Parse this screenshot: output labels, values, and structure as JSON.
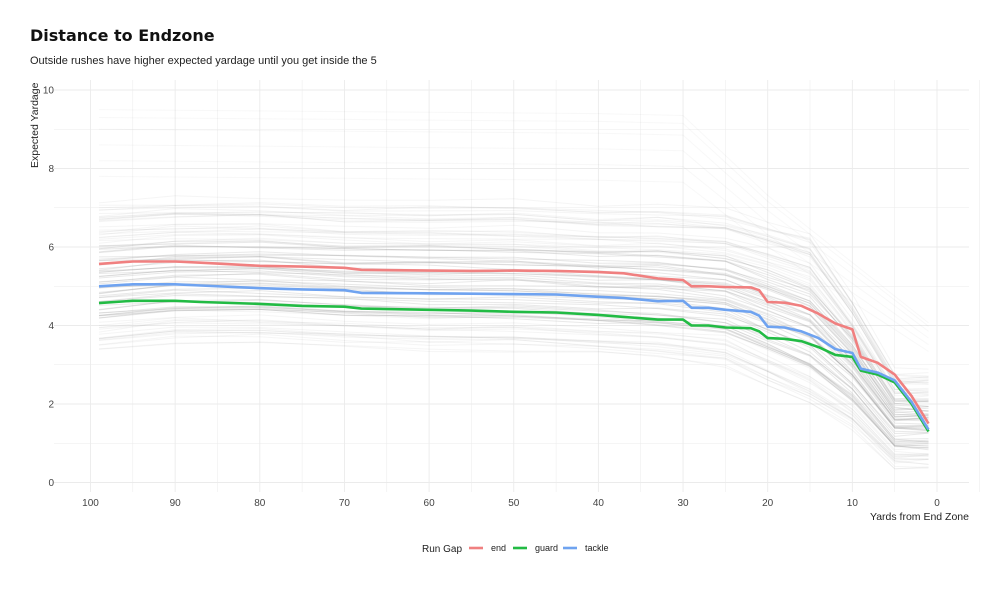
{
  "chart_data": {
    "type": "line",
    "title": "Distance to Endzone",
    "subtitle": "Outside rushes have higher expected yardage until you get inside the 5",
    "xlabel": "Yards from End Zone",
    "ylabel": "Expected Yardage",
    "xlim": [
      104,
      -4
    ],
    "ylim": [
      0,
      10
    ],
    "x_reversed": true,
    "x_ticks": [
      100,
      90,
      80,
      70,
      60,
      50,
      40,
      30,
      20,
      10,
      0
    ],
    "y_ticks": [
      0,
      2,
      4,
      6,
      8,
      10
    ],
    "grid": true,
    "background_lines": {
      "description_color": "#bdbdbd",
      "band_top": [
        7.1,
        7.2,
        7.2,
        7.1,
        7.1,
        7.1,
        7.0,
        7.0,
        6.9,
        6.6,
        6.3,
        4.7,
        2.8
      ],
      "band_bottom": [
        3.4,
        3.6,
        3.6,
        3.5,
        3.4,
        3.4,
        3.3,
        3.2,
        3.0,
        2.5,
        2.0,
        1.4,
        0.4
      ]
    },
    "legend": {
      "title": "Run Gap",
      "position": "bottom"
    },
    "series": [
      {
        "name": "end",
        "color": "#f08080",
        "x": [
          99,
          95,
          90,
          87,
          80,
          75,
          70,
          68,
          60,
          55,
          50,
          45,
          40,
          37,
          33,
          30,
          29,
          27,
          25,
          22,
          21,
          20,
          18,
          16,
          14,
          12,
          10,
          9,
          7,
          5,
          3,
          1
        ],
        "y": [
          5.57,
          5.63,
          5.63,
          5.6,
          5.52,
          5.5,
          5.47,
          5.42,
          5.4,
          5.39,
          5.4,
          5.39,
          5.36,
          5.33,
          5.2,
          5.16,
          5.0,
          5.0,
          4.98,
          4.97,
          4.9,
          4.6,
          4.58,
          4.5,
          4.3,
          4.05,
          3.9,
          3.2,
          3.05,
          2.75,
          2.2,
          1.5
        ]
      },
      {
        "name": "guard",
        "color": "#22bb44",
        "x": [
          99,
          95,
          90,
          87,
          80,
          75,
          70,
          68,
          60,
          55,
          50,
          45,
          40,
          37,
          33,
          30,
          29,
          27,
          25,
          22,
          21,
          20,
          18,
          16,
          14,
          12,
          10,
          9,
          7,
          5,
          3,
          1
        ],
        "y": [
          4.57,
          4.63,
          4.63,
          4.6,
          4.55,
          4.5,
          4.48,
          4.43,
          4.4,
          4.38,
          4.35,
          4.33,
          4.27,
          4.22,
          4.15,
          4.15,
          4.0,
          4.0,
          3.95,
          3.93,
          3.85,
          3.68,
          3.66,
          3.6,
          3.45,
          3.25,
          3.2,
          2.85,
          2.75,
          2.55,
          2.0,
          1.3
        ]
      },
      {
        "name": "tackle",
        "color": "#6fa3f0",
        "x": [
          99,
          95,
          90,
          87,
          80,
          75,
          70,
          68,
          60,
          55,
          50,
          45,
          40,
          37,
          33,
          30,
          29,
          27,
          25,
          22,
          21,
          20,
          18,
          16,
          14,
          12,
          10,
          9,
          7,
          5,
          3,
          1
        ],
        "y": [
          5.0,
          5.05,
          5.05,
          5.02,
          4.95,
          4.92,
          4.9,
          4.83,
          4.82,
          4.81,
          4.8,
          4.79,
          4.73,
          4.7,
          4.62,
          4.63,
          4.45,
          4.45,
          4.4,
          4.35,
          4.25,
          3.97,
          3.95,
          3.85,
          3.68,
          3.4,
          3.3,
          2.9,
          2.8,
          2.6,
          2.05,
          1.35
        ]
      }
    ]
  }
}
